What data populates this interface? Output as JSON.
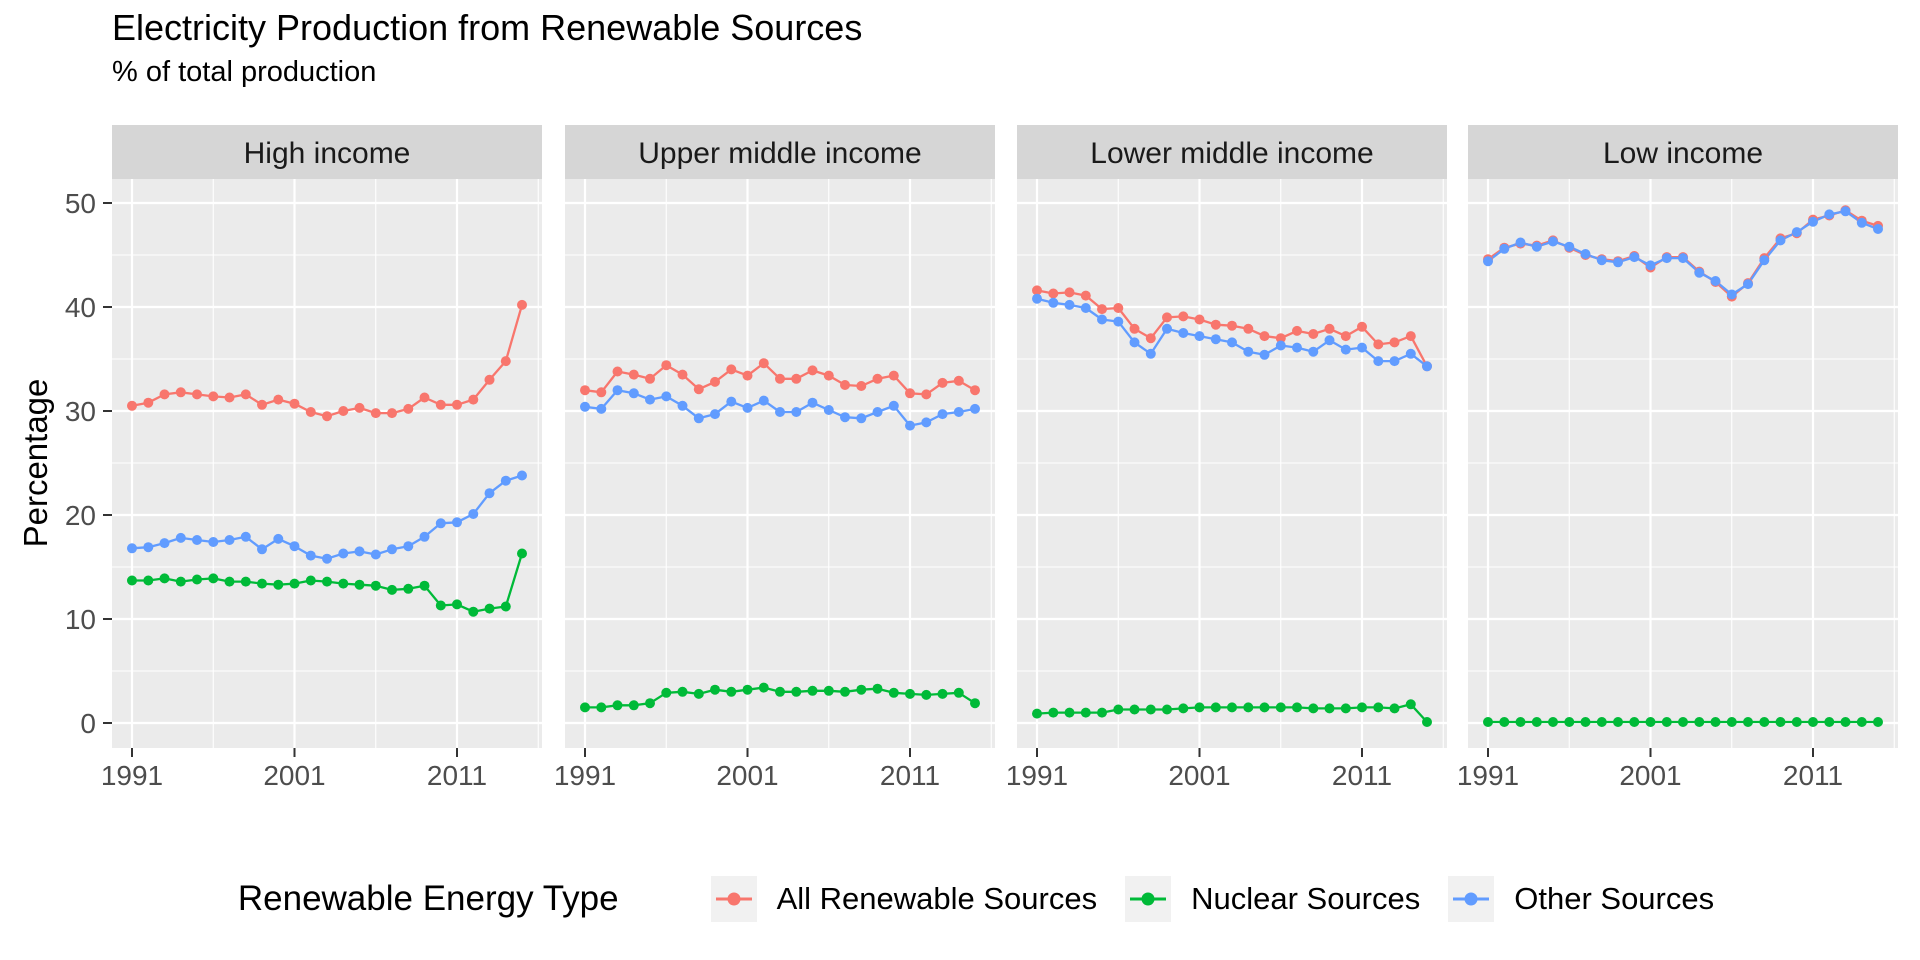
{
  "title": "Electricity Production from Renewable Sources",
  "subtitle": "% of total production",
  "y_axis_title": "Percentage",
  "legend": {
    "title": "Renewable Energy Type",
    "items": [
      {
        "label": "All Renewable Sources",
        "color": "#F8766D"
      },
      {
        "label": "Nuclear Sources",
        "color": "#00BA38"
      },
      {
        "label": "Other Sources",
        "color": "#619CFF"
      }
    ]
  },
  "theme": {
    "panel_bg": "#EBEBEB",
    "strip_bg": "#D6D6D6",
    "grid_color": "#FFFFFF",
    "tick_text_color": "#4D4D4D",
    "tick_mark_color": "#333333",
    "strip_text_color": "#1A1A1A",
    "legend_key_bg": "#F1F1F1"
  },
  "chart_data": {
    "type": "line",
    "title": "Electricity Production from Renewable Sources",
    "subtitle": "% of total production",
    "xlabel": "",
    "ylabel": "Percentage",
    "legend_title": "Renewable Energy Type",
    "legend_position": "bottom",
    "grid": true,
    "x_ticks": [
      1991,
      2001,
      2011
    ],
    "x_minor_ticks": [
      1996,
      2006,
      2016
    ],
    "y_ticks": [
      0,
      10,
      20,
      30,
      40,
      50
    ],
    "ylim": [
      -2.4,
      52.3
    ],
    "x": [
      1991,
      1992,
      1993,
      1994,
      1995,
      1996,
      1997,
      1998,
      1999,
      2000,
      2001,
      2002,
      2003,
      2004,
      2005,
      2006,
      2007,
      2008,
      2009,
      2010,
      2011,
      2012,
      2013,
      2014,
      2015
    ],
    "facets": [
      {
        "label": "High income",
        "series": [
          {
            "name": "All Renewable Sources",
            "values": [
              30.5,
              30.8,
              31.6,
              31.8,
              31.6,
              31.4,
              31.3,
              31.6,
              30.6,
              31.1,
              30.7,
              29.9,
              29.5,
              30.0,
              30.3,
              29.8,
              29.8,
              30.2,
              31.3,
              30.6,
              30.6,
              31.1,
              33.0,
              34.8,
              40.2
            ]
          },
          {
            "name": "Nuclear Sources",
            "values": [
              13.7,
              13.7,
              13.9,
              13.6,
              13.8,
              13.9,
              13.6,
              13.6,
              13.4,
              13.3,
              13.4,
              13.7,
              13.6,
              13.4,
              13.3,
              13.2,
              12.8,
              12.9,
              13.2,
              11.3,
              11.4,
              10.7,
              11.0,
              11.2,
              16.3
            ]
          },
          {
            "name": "Other Sources",
            "values": [
              16.8,
              16.9,
              17.3,
              17.8,
              17.6,
              17.4,
              17.6,
              17.9,
              16.7,
              17.7,
              17.0,
              16.1,
              15.8,
              16.3,
              16.5,
              16.2,
              16.7,
              17.0,
              17.9,
              19.2,
              19.3,
              20.1,
              22.1,
              23.3,
              23.8
            ]
          }
        ]
      },
      {
        "label": "Upper middle income",
        "series": [
          {
            "name": "All Renewable Sources",
            "values": [
              32.0,
              31.8,
              33.8,
              33.5,
              33.1,
              34.4,
              33.5,
              32.1,
              32.8,
              34.0,
              33.4,
              34.6,
              33.1,
              33.1,
              33.9,
              33.4,
              32.5,
              32.4,
              33.1,
              33.4,
              31.7,
              31.6,
              32.7,
              32.9,
              32.0
            ]
          },
          {
            "name": "Nuclear Sources",
            "values": [
              1.5,
              1.5,
              1.7,
              1.7,
              1.9,
              2.9,
              3.0,
              2.8,
              3.2,
              3.0,
              3.2,
              3.4,
              3.0,
              3.0,
              3.1,
              3.1,
              3.0,
              3.2,
              3.3,
              2.9,
              2.8,
              2.7,
              2.8,
              2.9,
              1.9
            ]
          },
          {
            "name": "Other Sources",
            "values": [
              30.4,
              30.2,
              32.0,
              31.7,
              31.1,
              31.4,
              30.5,
              29.3,
              29.7,
              30.9,
              30.3,
              31.0,
              29.9,
              29.9,
              30.8,
              30.1,
              29.4,
              29.3,
              29.9,
              30.5,
              28.6,
              28.9,
              29.7,
              29.9,
              30.2
            ]
          }
        ]
      },
      {
        "label": "Lower middle income",
        "series": [
          {
            "name": "All Renewable Sources",
            "values": [
              41.6,
              41.3,
              41.4,
              41.1,
              39.8,
              39.9,
              37.9,
              37.0,
              39.0,
              39.1,
              38.8,
              38.3,
              38.2,
              37.9,
              37.2,
              37.0,
              37.7,
              37.4,
              37.9,
              37.2,
              38.1,
              36.4,
              36.6,
              37.2,
              34.3
            ]
          },
          {
            "name": "Nuclear Sources",
            "values": [
              0.9,
              1.0,
              1.0,
              1.0,
              1.0,
              1.3,
              1.3,
              1.3,
              1.3,
              1.4,
              1.5,
              1.5,
              1.5,
              1.5,
              1.5,
              1.5,
              1.5,
              1.4,
              1.4,
              1.4,
              1.5,
              1.5,
              1.4,
              1.8,
              0.1
            ]
          },
          {
            "name": "Other Sources",
            "values": [
              40.8,
              40.4,
              40.2,
              39.9,
              38.8,
              38.6,
              36.6,
              35.5,
              37.9,
              37.5,
              37.2,
              36.9,
              36.6,
              35.7,
              35.4,
              36.3,
              36.1,
              35.7,
              36.8,
              35.9,
              36.1,
              34.8,
              34.8,
              35.5,
              34.3
            ]
          }
        ]
      },
      {
        "label": "Low income",
        "series": [
          {
            "name": "All Renewable Sources",
            "values": [
              44.6,
              45.7,
              46.1,
              45.9,
              46.4,
              45.7,
              45.0,
              44.6,
              44.4,
              44.9,
              43.8,
              44.8,
              44.8,
              43.4,
              42.4,
              41.0,
              42.3,
              44.7,
              46.6,
              47.1,
              48.4,
              48.8,
              49.3,
              48.3,
              47.8
            ]
          },
          {
            "name": "Nuclear Sources",
            "values": [
              0.1,
              0.1,
              0.1,
              0.1,
              0.1,
              0.1,
              0.1,
              0.1,
              0.1,
              0.1,
              0.1,
              0.1,
              0.1,
              0.1,
              0.1,
              0.1,
              0.1,
              0.1,
              0.1,
              0.1,
              0.1,
              0.1,
              0.1,
              0.1,
              0.1
            ]
          },
          {
            "name": "Other Sources",
            "values": [
              44.4,
              45.6,
              46.2,
              45.8,
              46.3,
              45.8,
              45.1,
              44.5,
              44.3,
              44.8,
              44.0,
              44.7,
              44.7,
              43.3,
              42.5,
              41.2,
              42.2,
              44.5,
              46.4,
              47.2,
              48.2,
              48.9,
              49.2,
              48.1,
              47.5
            ]
          }
        ]
      }
    ]
  }
}
